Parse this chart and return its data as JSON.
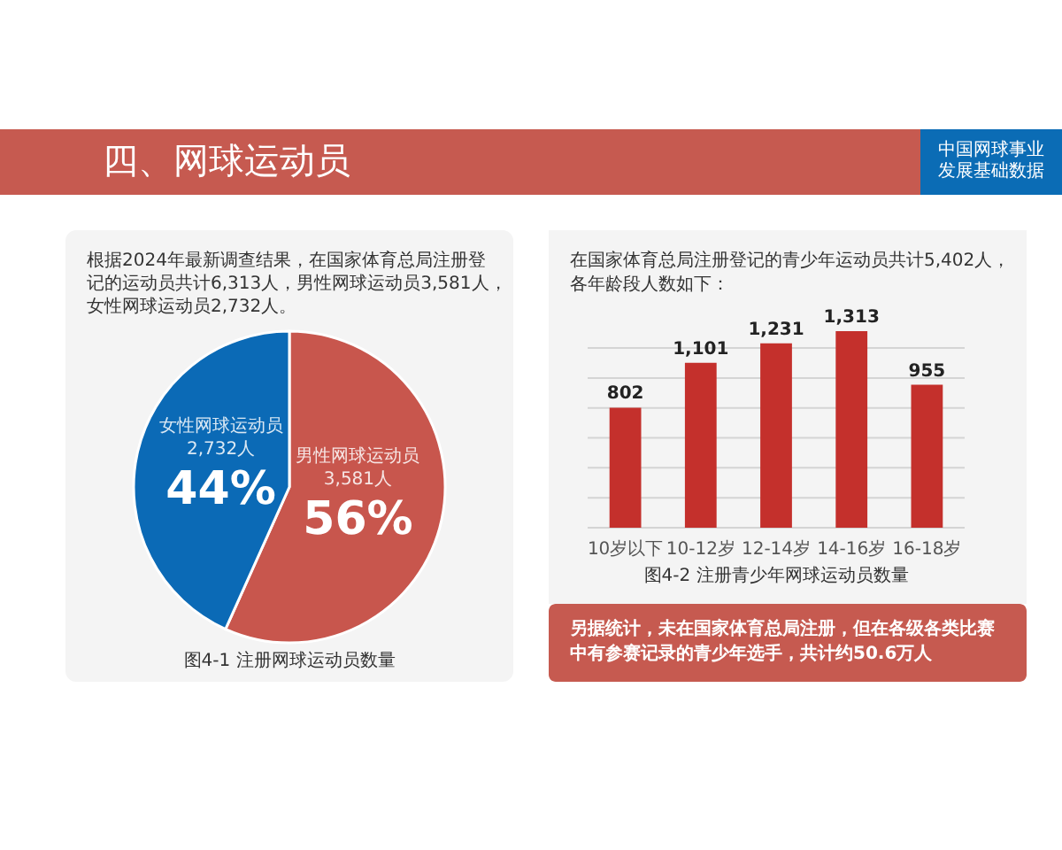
{
  "chart_data": [
    {
      "type": "other",
      "title": "四、网球运动员",
      "annotations": [
        "中国网球事业发展基础数据"
      ]
    },
    {
      "type": "pie",
      "title": "图4-1 注册网球运动员数量",
      "subtitle": "根据2024年最新调查结果，在国家体育总局注册登记的运动员共计6,313人，男性网球运动员3,581人，女性网球运动员2,732人。",
      "categories": [
        "男性网球运动员",
        "女性网球运动员"
      ],
      "values": [
        3581,
        2732
      ],
      "colors": [
        "#c8564d",
        "#0b6ab6"
      ],
      "value_labels": [
        "3,581人",
        "2,732人"
      ],
      "annotations": [
        {
          "text": "56%",
          "x": "男性网球运动员"
        },
        {
          "text": "44%",
          "x": "女性网球运动员"
        }
      ]
    },
    {
      "type": "bar",
      "title": "图4-2 注册青少年网球运动员数量",
      "subtitle": "在国家体育总局注册登记的青少年运动员共计5,402人，各年龄段人数如下：",
      "categories": [
        "10岁以下",
        "10-12岁",
        "12-14岁",
        "14-16岁",
        "16-18岁"
      ],
      "values": [
        802,
        1101,
        1231,
        1313,
        955
      ],
      "color": "#c4302c",
      "value_labels": [
        "802",
        "1,101",
        "1,231",
        "1,313",
        "955"
      ],
      "yticks": [
        {
          "value": 0,
          "label": null
        },
        {
          "value": 200,
          "label": null
        },
        {
          "value": 400,
          "label": null
        },
        {
          "value": 600,
          "label": null
        },
        {
          "value": 800,
          "label": null
        },
        {
          "value": 1000,
          "label": null
        },
        {
          "value": 1200,
          "label": null
        }
      ],
      "grid": "y",
      "tick_labels": "x",
      "annotations": [
        "另据统计，未在国家体育总局注册，但在各级各类比赛中有参赛记录的青少年选手，共计约50.6万人"
      ]
    }
  ]
}
